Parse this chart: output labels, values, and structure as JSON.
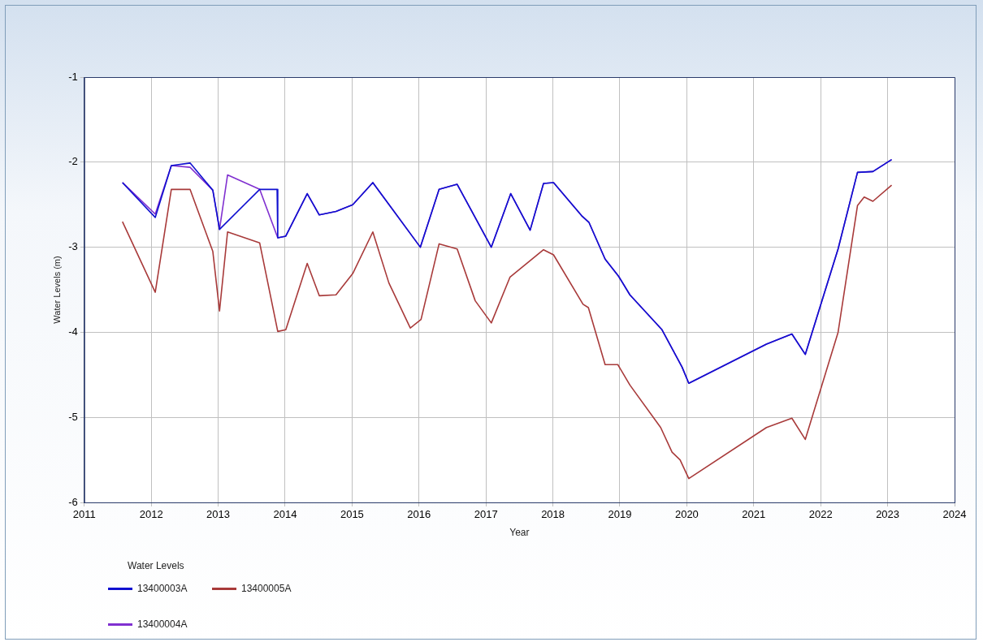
{
  "chart_data": {
    "type": "line",
    "xlabel": "Year",
    "ylabel": "Water Levels (m)",
    "legend_title": "Water Levels",
    "legend": "bottom left",
    "grid": true,
    "marker": "none",
    "line_style": "solid",
    "xlim": [
      2011,
      2024
    ],
    "xticks": [
      2011,
      2012,
      2013,
      2014,
      2015,
      2016,
      2017,
      2018,
      2019,
      2020,
      2021,
      2022,
      2023,
      2024
    ],
    "ylim": [
      -6,
      -1
    ],
    "yticks": [
      -6,
      -5,
      -4,
      -3,
      -2,
      -1
    ],
    "series": [
      {
        "name": "13400003A",
        "color": "#1010d0",
        "x": [
          2011.57,
          2012.06,
          2012.3,
          2012.58,
          2012.92,
          2013.02,
          2013.62,
          2013.88,
          2013.89,
          2014.01,
          2014.33,
          2014.51,
          2014.76,
          2015.01,
          2015.31,
          2016.02,
          2016.3,
          2016.57,
          2017.08,
          2017.37,
          2017.66,
          2017.86,
          2018.01,
          2018.43,
          2018.54,
          2018.78,
          2018.98,
          2019.15,
          2019.63,
          2019.93,
          2020.03,
          2021.19,
          2021.57,
          2021.77,
          2022.26,
          2022.55,
          2022.78,
          2023.06
        ],
        "values": [
          -2.24,
          -2.65,
          -2.04,
          -2.01,
          -2.33,
          -2.79,
          -2.32,
          -2.32,
          -2.89,
          -2.87,
          -2.37,
          -2.62,
          -2.58,
          -2.5,
          -2.24,
          -3.0,
          -2.32,
          -2.26,
          -3.0,
          -2.37,
          -2.8,
          -2.25,
          -2.24,
          -2.63,
          -2.71,
          -3.14,
          -3.34,
          -3.56,
          -3.97,
          -4.41,
          -4.6,
          -4.14,
          -4.02,
          -4.26,
          -3.02,
          -2.12,
          -2.11,
          -1.97
        ]
      },
      {
        "name": "13400005A",
        "color": "#a83a3a",
        "x": [
          2011.57,
          2012.06,
          2012.3,
          2012.58,
          2012.92,
          2013.02,
          2013.14,
          2013.62,
          2013.89,
          2014.01,
          2014.33,
          2014.51,
          2014.76,
          2015.01,
          2015.31,
          2015.55,
          2015.87,
          2016.03,
          2016.3,
          2016.57,
          2016.84,
          2017.08,
          2017.36,
          2017.86,
          2018.01,
          2018.45,
          2018.53,
          2018.78,
          2018.97,
          2019.15,
          2019.61,
          2019.78,
          2019.9,
          2020.03,
          2021.19,
          2021.57,
          2021.77,
          2022.26,
          2022.55,
          2022.65,
          2022.78,
          2023.06
        ],
        "values": [
          -2.7,
          -3.53,
          -2.32,
          -2.32,
          -3.05,
          -3.75,
          -2.82,
          -2.95,
          -3.99,
          -3.97,
          -3.19,
          -3.57,
          -3.56,
          -3.31,
          -2.82,
          -3.42,
          -3.95,
          -3.85,
          -2.96,
          -3.02,
          -3.63,
          -3.89,
          -3.35,
          -3.03,
          -3.09,
          -3.67,
          -3.71,
          -4.38,
          -4.38,
          -4.62,
          -5.12,
          -5.41,
          -5.5,
          -5.72,
          -5.12,
          -5.01,
          -5.26,
          -4.0,
          -2.51,
          -2.41,
          -2.46,
          -2.27
        ]
      },
      {
        "name": "13400004A",
        "color": "#8030d0",
        "x": [
          2011.57,
          2012.06,
          2012.3,
          2012.58,
          2012.92,
          2013.02,
          2013.14,
          2013.62,
          2013.89,
          2014.01,
          2014.33,
          2014.51,
          2014.76,
          2015.01,
          2015.31,
          2016.02,
          2016.3,
          2016.57,
          2017.08,
          2017.37,
          2017.66,
          2017.86,
          2018.01,
          2018.43,
          2018.54,
          2018.78,
          2018.98,
          2019.15,
          2019.63,
          2019.93,
          2020.03,
          2021.19,
          2021.57,
          2021.77,
          2022.26,
          2022.55,
          2022.78,
          2023.06
        ],
        "values": [
          -2.24,
          -2.61,
          -2.04,
          -2.06,
          -2.33,
          -2.79,
          -2.15,
          -2.32,
          -2.89,
          -2.87,
          -2.37,
          -2.62,
          -2.58,
          -2.5,
          -2.24,
          -3.0,
          -2.32,
          -2.26,
          -3.0,
          -2.37,
          -2.8,
          -2.25,
          -2.24,
          -2.63,
          -2.71,
          -3.14,
          -3.34,
          -3.56,
          -3.97,
          -4.41,
          -4.6,
          -4.14,
          -4.02,
          -4.26,
          -3.02,
          -2.12,
          -2.11,
          -1.97
        ]
      }
    ]
  }
}
